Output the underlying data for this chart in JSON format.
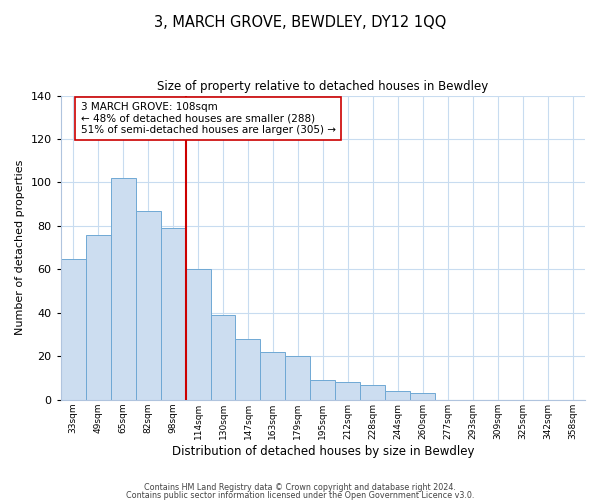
{
  "title": "3, MARCH GROVE, BEWDLEY, DY12 1QQ",
  "subtitle": "Size of property relative to detached houses in Bewdley",
  "xlabel": "Distribution of detached houses by size in Bewdley",
  "ylabel": "Number of detached properties",
  "bar_labels": [
    "33sqm",
    "49sqm",
    "65sqm",
    "82sqm",
    "98sqm",
    "114sqm",
    "130sqm",
    "147sqm",
    "163sqm",
    "179sqm",
    "195sqm",
    "212sqm",
    "228sqm",
    "244sqm",
    "260sqm",
    "277sqm",
    "293sqm",
    "309sqm",
    "325sqm",
    "342sqm",
    "358sqm"
  ],
  "bar_values": [
    65,
    76,
    102,
    87,
    79,
    60,
    39,
    28,
    22,
    20,
    9,
    8,
    7,
    4,
    3,
    0,
    0,
    0,
    0,
    0,
    0
  ],
  "bar_color": "#ccddf0",
  "bar_edge_color": "#6fa8d4",
  "vline_x": 5.0,
  "vline_color": "#cc0000",
  "annotation_title": "3 MARCH GROVE: 108sqm",
  "annotation_line1": "← 48% of detached houses are smaller (288)",
  "annotation_line2": "51% of semi-detached houses are larger (305) →",
  "annotation_box_color": "#ffffff",
  "annotation_box_edge": "#cc0000",
  "ylim": [
    0,
    140
  ],
  "yticks": [
    0,
    20,
    40,
    60,
    80,
    100,
    120,
    140
  ],
  "footer1": "Contains HM Land Registry data © Crown copyright and database right 2024.",
  "footer2": "Contains public sector information licensed under the Open Government Licence v3.0.",
  "bg_color": "#ffffff",
  "grid_color": "#c8dcf0"
}
